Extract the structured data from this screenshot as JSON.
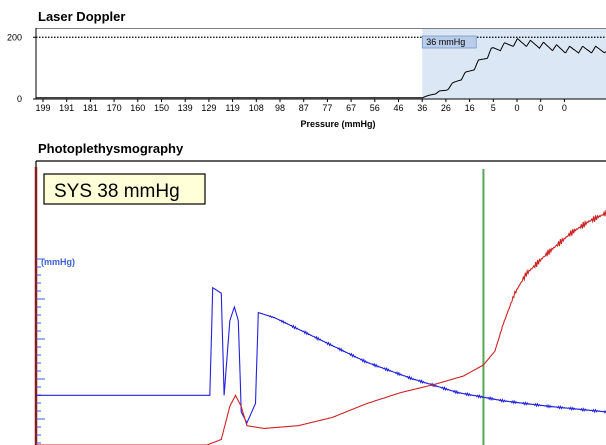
{
  "chart_data": [
    {
      "type": "line",
      "title": "Laser Doppler",
      "xlabel": "Pressure   (mmHg)",
      "ylabel": "",
      "x_ticks": [
        "199",
        "191",
        "181",
        "170",
        "160",
        "150",
        "139",
        "129",
        "119",
        "108",
        "98",
        "87",
        "77",
        "67",
        "56",
        "46",
        "36",
        "26",
        "16",
        "5",
        "0",
        "0",
        "0"
      ],
      "y_ticks": [
        "200",
        "0"
      ],
      "ylim": [
        0,
        230
      ],
      "reference_line": {
        "y": 200,
        "style": "dotted"
      },
      "marker": {
        "label": "36 mmHg",
        "x_tick_index": 16
      },
      "series": [
        {
          "color": "#000000",
          "style": "pulsatile",
          "flat_until_tick_index": 16,
          "baseline_value": 4,
          "envelope_points": [
            [
              16,
              4
            ],
            [
              17,
              30
            ],
            [
              18,
              90
            ],
            [
              19,
              160
            ],
            [
              20,
              185
            ],
            [
              21,
              175
            ],
            [
              22,
              160
            ]
          ],
          "pulse_amplitude": 22
        }
      ]
    },
    {
      "type": "line",
      "title": "Photoplethysmography",
      "annotation": "SYS 38 mmHg",
      "ylabel": "(mmHg)",
      "xlim": [
        0,
        100
      ],
      "ylim": [
        0,
        100
      ],
      "systolic_marker_x": 78.5,
      "series": [
        {
          "color": "#2222dd",
          "points": [
            [
              0,
              18
            ],
            [
              30.5,
              18
            ],
            [
              31,
              57
            ],
            [
              32.5,
              55
            ],
            [
              33,
              18
            ],
            [
              34,
              45
            ],
            [
              34.8,
              50
            ],
            [
              35.5,
              45
            ],
            [
              36,
              12
            ],
            [
              37,
              8
            ],
            [
              38.5,
              15
            ],
            [
              39,
              48
            ],
            [
              42,
              46
            ],
            [
              50,
              38
            ],
            [
              58,
              30
            ],
            [
              66,
              24
            ],
            [
              74,
              19
            ],
            [
              82,
              16
            ],
            [
              90,
              14
            ],
            [
              100,
              12
            ]
          ]
        },
        {
          "color": "#cc2222",
          "points": [
            [
              0,
              0
            ],
            [
              30,
              0
            ],
            [
              32.5,
              2
            ],
            [
              34,
              14
            ],
            [
              35,
              18
            ],
            [
              36,
              14
            ],
            [
              37,
              7
            ],
            [
              40,
              6
            ],
            [
              46,
              7
            ],
            [
              52,
              10
            ],
            [
              58,
              15
            ],
            [
              64,
              19
            ],
            [
              70,
              22
            ],
            [
              75,
              25
            ],
            [
              78.5,
              29
            ],
            [
              80.5,
              34
            ],
            [
              82,
              44
            ],
            [
              84,
              55
            ],
            [
              86,
              62
            ],
            [
              90,
              70
            ],
            [
              94,
              77
            ],
            [
              97,
              81
            ],
            [
              100,
              84
            ]
          ]
        }
      ]
    }
  ]
}
